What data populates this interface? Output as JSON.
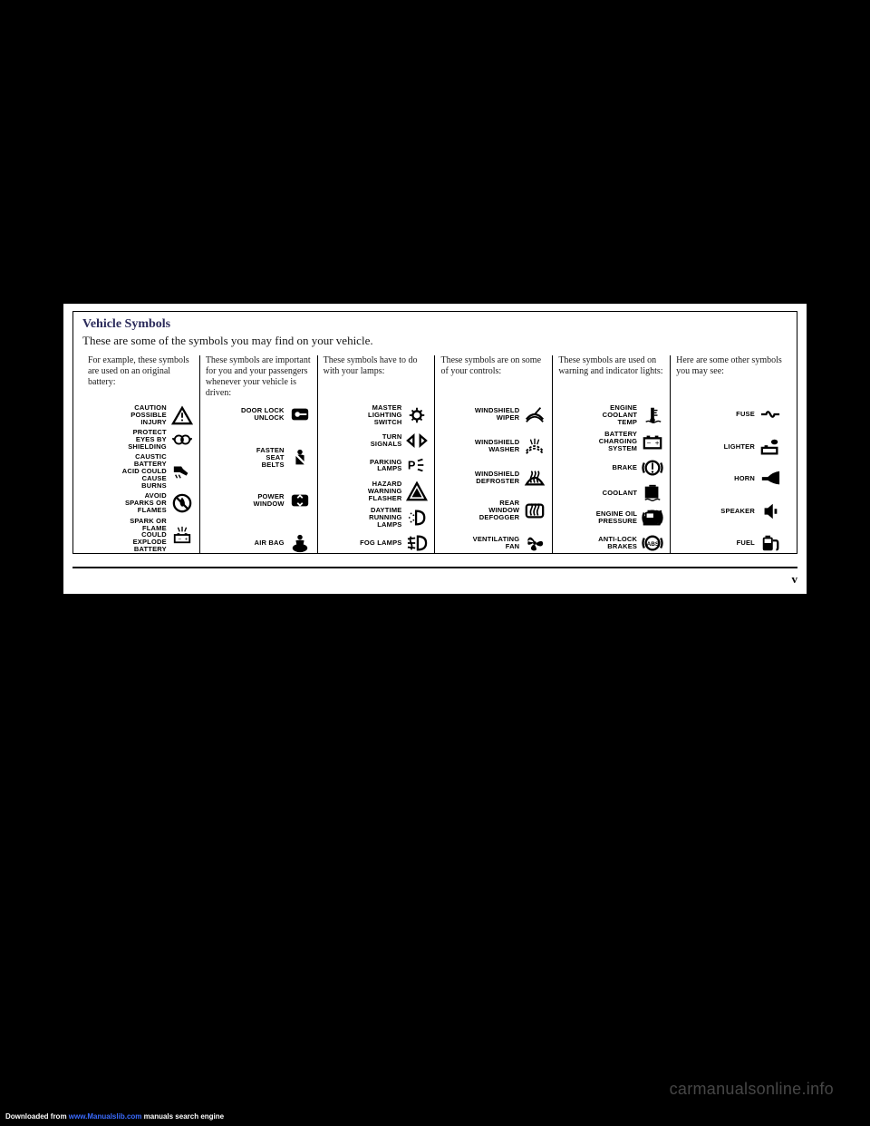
{
  "title": "Vehicle Symbols",
  "subtitle": "These are some of the symbols you may find on your vehicle.",
  "pagenum": "v",
  "watermark": "carmanualsonline.info",
  "download_prefix": "Downloaded from ",
  "download_link": "www.Manualslib.com",
  "download_suffix": " manuals search engine",
  "columns": [
    {
      "head": "For example, these symbols are used on an original battery:",
      "items": [
        {
          "label": "CAUTION\nPOSSIBLE\nINJURY",
          "icon": "warning-triangle"
        },
        {
          "label": "PROTECT\nEYES BY\nSHIELDING",
          "icon": "goggles"
        },
        {
          "label": "CAUSTIC\nBATTERY\nACID COULD\nCAUSE\nBURNS",
          "icon": "acid-hand"
        },
        {
          "label": "AVOID\nSPARKS OR\nFLAMES",
          "icon": "no-flame"
        },
        {
          "label": "SPARK OR\nFLAME\nCOULD\nEXPLODE\nBATTERY",
          "icon": "battery-spark"
        }
      ]
    },
    {
      "head": "These symbols are important for you and your passengers whenever your vehicle is driven:",
      "items": [
        {
          "label": "DOOR LOCK\nUNLOCK",
          "icon": "door-lock"
        },
        {
          "label": "FASTEN\nSEAT\nBELTS",
          "icon": "seatbelt"
        },
        {
          "label": "POWER\nWINDOW",
          "icon": "power-window"
        },
        {
          "label": "AIR BAG",
          "icon": "airbag"
        }
      ]
    },
    {
      "head": "These symbols have to do with your lamps:",
      "items": [
        {
          "label": "MASTER\nLIGHTING\nSWITCH",
          "icon": "master-light"
        },
        {
          "label": "TURN\nSIGNALS",
          "icon": "turn-signals"
        },
        {
          "label": "PARKING\nLAMPS",
          "icon": "parking-lamps"
        },
        {
          "label": "HAZARD\nWARNING\nFLASHER",
          "icon": "hazard"
        },
        {
          "label": "DAYTIME\nRUNNING\nLAMPS",
          "icon": "drl"
        },
        {
          "label": "FOG LAMPS",
          "icon": "fog-lamps"
        }
      ]
    },
    {
      "head": "These symbols are on some of your controls:",
      "items": [
        {
          "label": "WINDSHIELD\nWIPER",
          "icon": "wiper"
        },
        {
          "label": "WINDSHIELD\nWASHER",
          "icon": "washer"
        },
        {
          "label": "WINDSHIELD\nDEFROSTER",
          "icon": "defrost-front"
        },
        {
          "label": "REAR\nWINDOW\nDEFOGGER",
          "icon": "defrost-rear"
        },
        {
          "label": "VENTILATING\nFAN",
          "icon": "fan"
        }
      ]
    },
    {
      "head": "These symbols are used on warning and indicator lights:",
      "items": [
        {
          "label": "ENGINE\nCOOLANT\nTEMP",
          "icon": "temp"
        },
        {
          "label": "BATTERY\nCHARGING\nSYSTEM",
          "icon": "battery"
        },
        {
          "label": "BRAKE",
          "icon": "brake"
        },
        {
          "label": "COOLANT",
          "icon": "coolant"
        },
        {
          "label": "ENGINE OIL\nPRESSURE",
          "icon": "oil"
        },
        {
          "label": "ANTI-LOCK\nBRAKES",
          "icon": "abs"
        }
      ]
    },
    {
      "head": "Here are some other symbols you may see:",
      "items": [
        {
          "label": "FUSE",
          "icon": "fuse"
        },
        {
          "label": "LIGHTER",
          "icon": "lighter"
        },
        {
          "label": "HORN",
          "icon": "horn"
        },
        {
          "label": "SPEAKER",
          "icon": "speaker"
        },
        {
          "label": "FUEL",
          "icon": "fuel"
        }
      ]
    }
  ]
}
